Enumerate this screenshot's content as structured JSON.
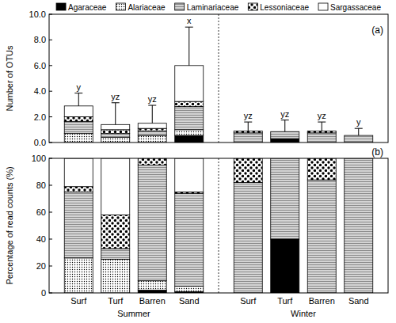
{
  "chart_data": [
    {
      "type": "bar",
      "stacked": true,
      "panel_label": "(a)",
      "y_label": "Number of OTUs",
      "categories": [
        "Surf",
        "Turf",
        "Barren",
        "Sand",
        "Surf",
        "Turf",
        "Barren",
        "Sand"
      ],
      "tick_labels": "y",
      "legend": "top",
      "ylim": [
        0,
        10
      ],
      "yticks": [
        {
          "value": 0,
          "label": "0.0"
        },
        {
          "value": 2,
          "label": "2.0"
        },
        {
          "value": 4,
          "label": "4.0"
        },
        {
          "value": 6,
          "label": "6.0"
        },
        {
          "value": 8,
          "label": "8.0"
        },
        {
          "value": 10,
          "label": "10.0"
        }
      ],
      "series": [
        {
          "name": "Agaraceae",
          "color": "#000000",
          "values": [
            0,
            0,
            0,
            0.55,
            0,
            0.3,
            0,
            0
          ]
        },
        {
          "name": "Alariaceae",
          "color": "#ffffff",
          "values": [
            0.7,
            0.4,
            0.55,
            0.45,
            0,
            0,
            0,
            0
          ]
        },
        {
          "name": "Laminariaceae",
          "color": "#d4d4d4",
          "values": [
            0.95,
            0.3,
            0.35,
            1.8,
            0.75,
            0.55,
            0.75,
            0.55
          ]
        },
        {
          "name": "Lessoniaceae",
          "color": "#ffffff",
          "values": [
            0.35,
            0.3,
            0.2,
            0.4,
            0.15,
            0,
            0.15,
            0
          ]
        },
        {
          "name": "Sargassaceae",
          "color": "#ffffff",
          "values": [
            0.85,
            0.4,
            0.4,
            2.8,
            0,
            0,
            0,
            0
          ]
        }
      ],
      "errors": [
        1.0,
        1.7,
        1.4,
        3.0,
        0.7,
        0.9,
        0.7,
        0.55
      ],
      "annotations": [
        "y",
        "yz",
        "yz",
        "x",
        "yz",
        "yz",
        "yz",
        "y"
      ]
    },
    {
      "type": "bar",
      "stacked": true,
      "panel_label": "(b)",
      "y_label": "Percentage of read counts (%)",
      "categories": [
        "Surf",
        "Turf",
        "Barren",
        "Sand",
        "Surf",
        "Turf",
        "Barren",
        "Sand"
      ],
      "group_labels": [
        "Summer",
        "Winter"
      ],
      "ylim": [
        0,
        100
      ],
      "yticks": [
        0,
        20,
        40,
        60,
        80,
        100
      ],
      "series": [
        {
          "color": "#000000",
          "values": [
            0,
            0,
            2,
            1,
            0,
            40,
            0,
            0
          ]
        },
        {
          "color": "#ffffff",
          "values": [
            26,
            25,
            7,
            4,
            0,
            0,
            0,
            0
          ]
        },
        {
          "color": "#d4d4d4",
          "values": [
            49,
            8,
            86,
            69,
            82,
            60,
            84,
            100
          ]
        },
        {
          "color": "#ffffff",
          "values": [
            4,
            25,
            5,
            1,
            18,
            0,
            16,
            0
          ]
        },
        {
          "color": "#ffffff",
          "values": [
            21,
            42,
            0,
            25,
            0,
            0,
            0,
            0
          ]
        }
      ]
    }
  ]
}
